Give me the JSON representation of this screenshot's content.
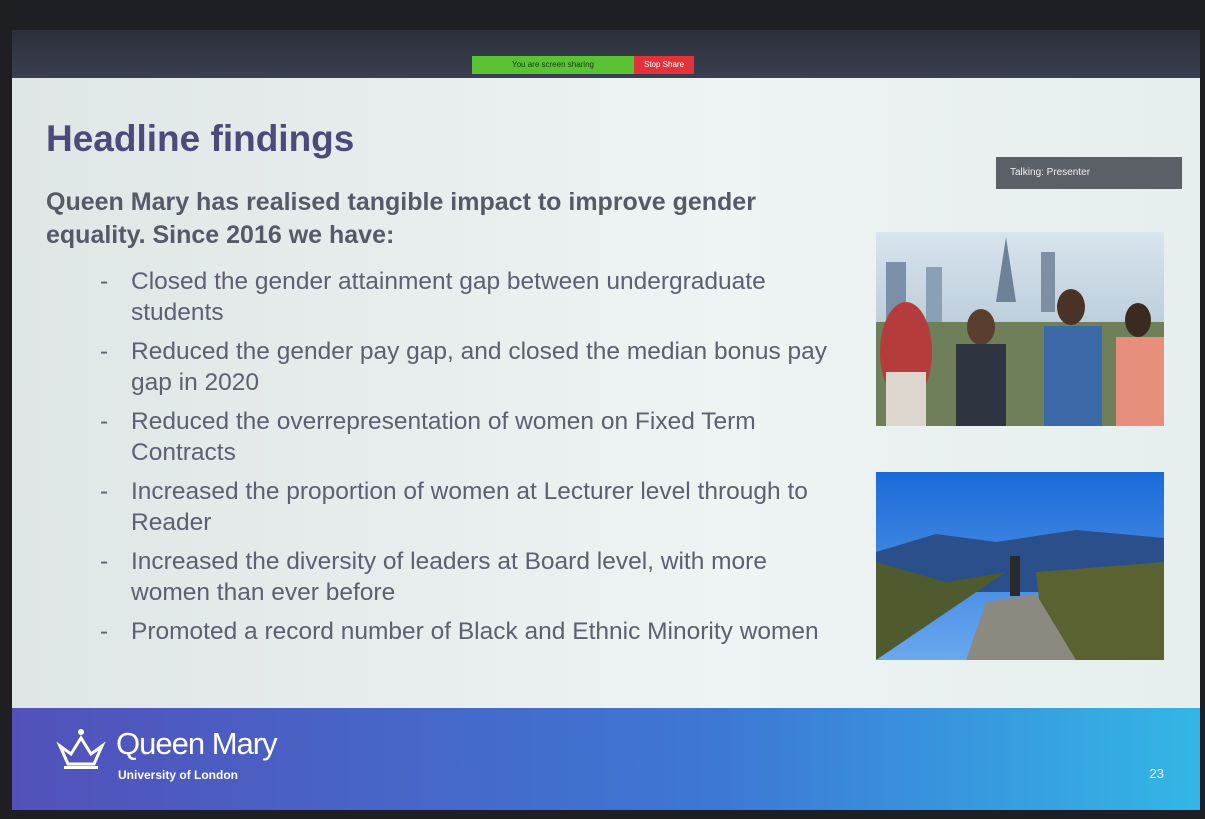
{
  "screen_share_bar": {
    "status": "You are screen sharing",
    "stop_button": "Stop Share"
  },
  "talking_indicator": "Talking: Presenter",
  "slide": {
    "title": "Headline findings",
    "intro": "Queen Mary has realised tangible impact to improve gender equality. Since 2016 we have:",
    "bullets": [
      "Closed the gender attainment gap between undergraduate students",
      "Reduced the gender pay gap, and closed the median bonus pay gap in 2020",
      "Reduced the overrepresentation of women on Fixed Term Contracts",
      "Increased the proportion of women at Lecturer level through to Reader",
      "Increased the diversity of leaders at Board level, with more women than ever before",
      "Promoted a record number of Black and Ethnic Minority women"
    ],
    "footer": {
      "logo_name": "Queen Mary",
      "logo_sub": "University of London",
      "page_number": 23
    }
  }
}
